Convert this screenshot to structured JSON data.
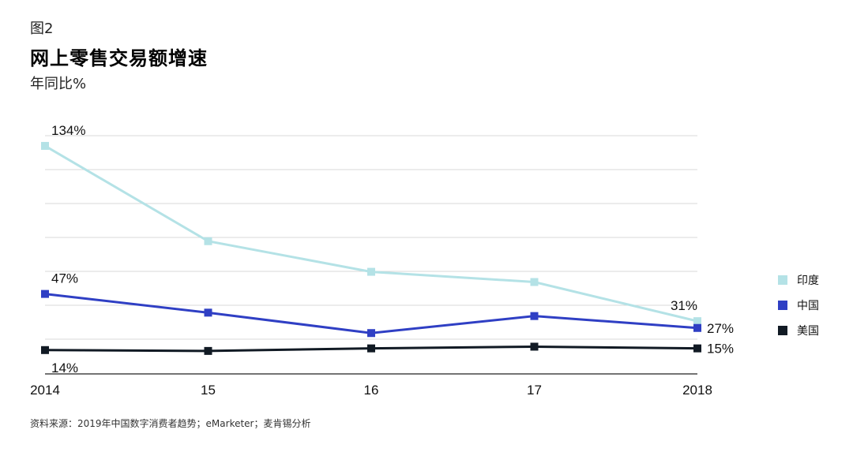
{
  "header": {
    "figure_label": "图2",
    "title": "网上零售交易额增速",
    "subtitle": "年同比%"
  },
  "source": "资料来源：2019年中国数字消费者趋势；eMarketer；麦肯锡分析",
  "chart_data": {
    "type": "line",
    "title": "网上零售交易额增速",
    "ylabel": "年同比%",
    "xlabel": "",
    "categories": [
      "2014",
      "15",
      "16",
      "17",
      "2018"
    ],
    "ylim": [
      0,
      140
    ],
    "grid": true,
    "legend_position": "right",
    "series": [
      {
        "name": "印度",
        "color": "#b4e2e6",
        "values": [
          134,
          78,
          60,
          54,
          31
        ],
        "labels": {
          "0": "134%",
          "4": "31%"
        }
      },
      {
        "name": "中国",
        "color": "#2f3fc4",
        "values": [
          47,
          36,
          24,
          34,
          27
        ],
        "labels": {
          "0": "47%",
          "4": "27%"
        }
      },
      {
        "name": "美国",
        "color": "#111a24",
        "values": [
          14,
          13.5,
          15,
          16,
          15
        ],
        "labels": {
          "0": "14%",
          "4": "15%"
        }
      }
    ]
  }
}
